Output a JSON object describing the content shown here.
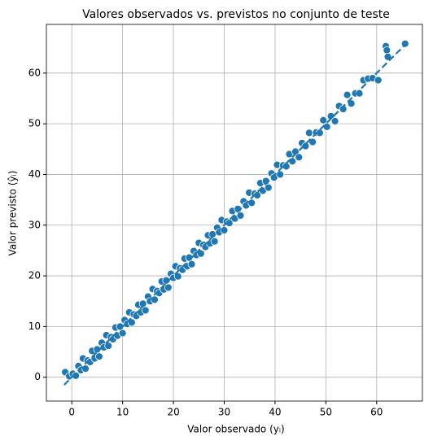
{
  "chart_data": {
    "type": "scatter",
    "title": "Valores observados vs. previstos no conjunto de teste",
    "xlabel": "Valor observado (yᵢ)",
    "ylabel": "Valor previsto (ŷᵢ)",
    "color": "#1f77b4",
    "grid": true,
    "xlim": [
      -5,
      69
    ],
    "ylim": [
      -4.7,
      69.6
    ],
    "xticks": [
      0,
      10,
      20,
      30,
      40,
      50,
      60
    ],
    "yticks": [
      0,
      10,
      20,
      30,
      40,
      50,
      60
    ],
    "reference_line": {
      "x": [
        -1.5,
        65.6
      ],
      "y": [
        -1.5,
        65.6
      ]
    },
    "x": [
      -1.3,
      -0.5,
      0.2,
      0.8,
      1.3,
      1.8,
      2.2,
      2.7,
      3.1,
      3.6,
      4.0,
      4.5,
      5.0,
      5.4,
      5.9,
      6.3,
      6.8,
      7.2,
      7.7,
      8.1,
      8.6,
      9.0,
      9.5,
      10.0,
      10.4,
      10.9,
      11.3,
      11.8,
      12.2,
      12.7,
      13.1,
      13.6,
      14.0,
      14.5,
      15.0,
      15.4,
      15.9,
      16.3,
      16.8,
      17.2,
      17.7,
      18.1,
      18.6,
      19.0,
      19.5,
      20.0,
      20.4,
      20.9,
      21.3,
      21.8,
      22.2,
      22.7,
      23.1,
      23.6,
      24.0,
      24.5,
      25.0,
      25.4,
      25.9,
      26.3,
      26.8,
      27.2,
      27.7,
      28.1,
      28.6,
      29.0,
      29.5,
      30.0,
      30.5,
      31.0,
      31.6,
      32.1,
      32.7,
      33.2,
      33.8,
      34.3,
      34.9,
      35.4,
      36.0,
      36.5,
      37.1,
      37.6,
      38.2,
      38.7,
      39.3,
      39.8,
      40.4,
      41.0,
      41.6,
      42.2,
      42.8,
      43.4,
      44.0,
      44.7,
      45.3,
      46.0,
      46.7,
      47.4,
      48.1,
      48.8,
      49.5,
      50.2,
      51.0,
      51.8,
      52.6,
      53.4,
      54.2,
      55.0,
      55.8,
      56.6,
      57.4,
      58.3,
      59.2,
      60.3,
      61.8,
      62.0,
      62.2,
      65.6
    ],
    "y": [
      1.0,
      0.2,
      0.7,
      0.3,
      2.2,
      1.4,
      3.7,
      1.7,
      3.3,
      3.0,
      5.2,
      3.7,
      5.5,
      4.1,
      6.8,
      5.9,
      8.3,
      6.2,
      7.9,
      7.5,
      9.8,
      8.2,
      10.0,
      8.7,
      11.3,
      10.5,
      12.8,
      10.8,
      12.4,
      12.1,
      14.3,
      12.8,
      14.5,
      13.2,
      15.9,
      15.0,
      17.4,
      15.3,
      17.0,
      16.6,
      18.9,
      17.3,
      19.1,
      17.7,
      20.4,
      19.6,
      21.9,
      19.9,
      21.5,
      21.2,
      23.4,
      21.9,
      23.6,
      22.3,
      24.9,
      24.1,
      26.5,
      24.4,
      26.1,
      25.7,
      28.0,
      26.4,
      28.2,
      26.8,
      29.5,
      28.6,
      31.0,
      29.0,
      30.7,
      30.4,
      32.8,
      31.3,
      33.2,
      31.9,
      34.7,
      33.9,
      36.4,
      34.4,
      36.2,
      35.9,
      38.3,
      36.8,
      38.7,
      37.4,
      40.2,
      39.4,
      41.9,
      40.0,
      41.8,
      41.6,
      44.0,
      42.6,
      44.5,
      43.4,
      46.2,
      45.6,
      48.2,
      46.4,
      48.3,
      48.2,
      50.7,
      49.4,
      51.5,
      50.5,
      53.5,
      52.9,
      55.7,
      54.0,
      56.0,
      56.0,
      58.6,
      58.9,
      59.0,
      58.6,
      65.3,
      64.5,
      63.2,
      65.8
    ]
  }
}
